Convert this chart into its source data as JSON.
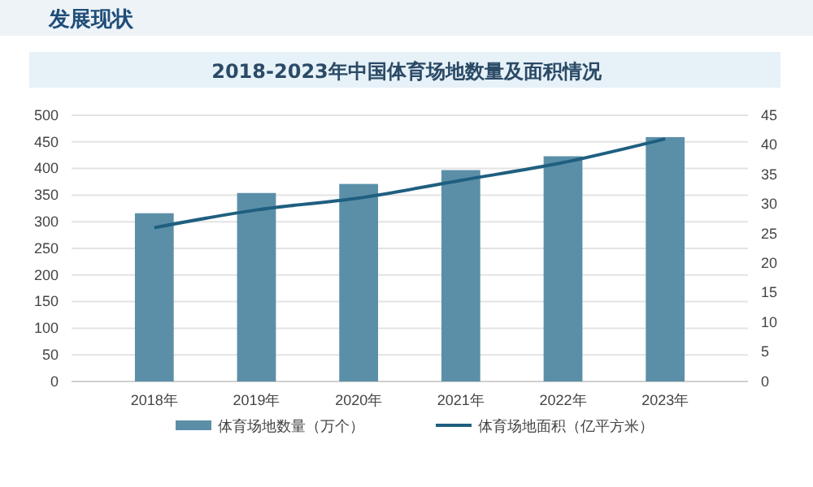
{
  "chart_data": {
    "type": "bar",
    "title": "2018-2023年中国体育场地数量及面积情况",
    "annotations": [
      "发展现状"
    ],
    "categories": [
      "2018年",
      "2019年",
      "2020年",
      "2021年",
      "2022年",
      "2023年"
    ],
    "series": [
      {
        "name": "体育场地数量（万个）",
        "color": "#5b8fa8",
        "values": [
          316,
          354,
          371,
          397,
          423,
          459
        ]
      },
      {
        "name": "体育场地面积（亿平方米）",
        "type": "line",
        "axis": "y2",
        "color": "#1f5f80",
        "values": [
          26,
          29,
          31,
          34,
          37,
          41
        ]
      }
    ],
    "ylim": [
      0,
      500
    ],
    "yticks": [
      0,
      50,
      100,
      150,
      200,
      250,
      300,
      350,
      400,
      450,
      500
    ],
    "y2lim": [
      0,
      45
    ],
    "y2ticks": [
      0,
      5,
      10,
      15,
      20,
      25,
      30,
      35,
      40,
      45
    ],
    "grid": "y",
    "legend": "bottom",
    "marker": "none"
  }
}
